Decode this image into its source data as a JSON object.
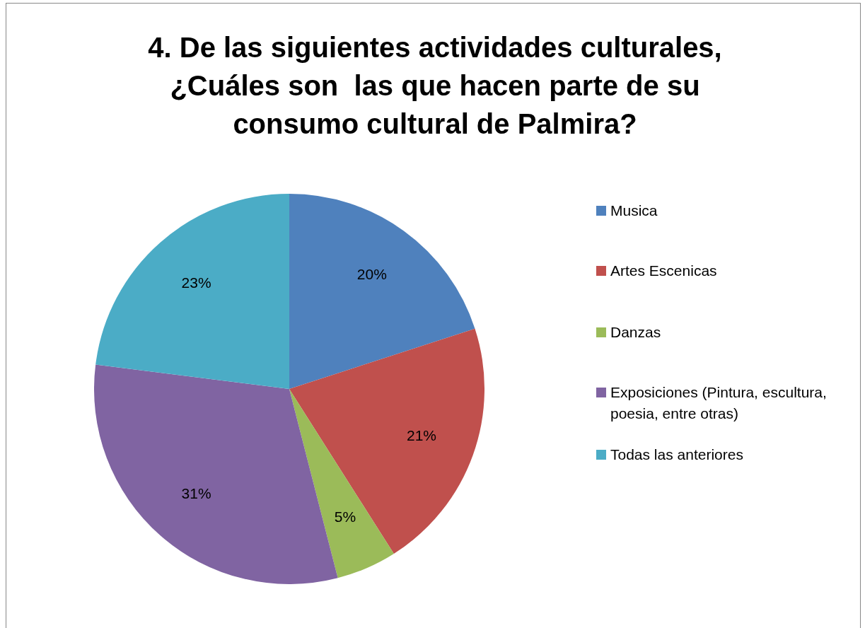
{
  "chart_data": {
    "type": "pie",
    "title": "4. De las siguientes actividades culturales, ¿Cuáles son  las que hacen parte de su consumo cultural de Palmira?",
    "categories": [
      "Musica",
      "Artes Escenicas",
      "Danzas",
      "Exposiciones (Pintura, escultura, poesia, entre otras)",
      "Todas las anteriores"
    ],
    "values": [
      20,
      21,
      5,
      31,
      23
    ],
    "value_labels": [
      "20%",
      "21%",
      "5%",
      "31%",
      "23%"
    ],
    "colors": [
      "#4f81bd",
      "#c0504d",
      "#9bbb59",
      "#8064a2",
      "#4bacc6"
    ],
    "legend": "right"
  }
}
